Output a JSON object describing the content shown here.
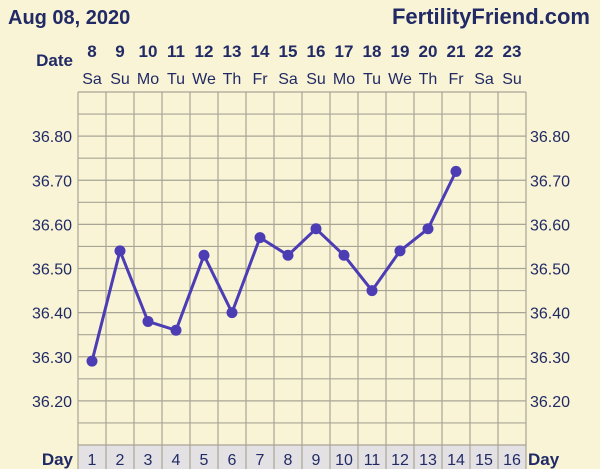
{
  "header": {
    "date_title": "Aug 08, 2020",
    "site": "FertilityFriend.com"
  },
  "chart_data": {
    "type": "line",
    "date_row_label": "Date",
    "day_row_label": "Day",
    "dates": [
      "8",
      "9",
      "10",
      "11",
      "12",
      "13",
      "14",
      "15",
      "16",
      "17",
      "18",
      "19",
      "20",
      "21",
      "22",
      "23"
    ],
    "weekdays": [
      "Sa",
      "Su",
      "Mo",
      "Tu",
      "We",
      "Th",
      "Fr",
      "Sa",
      "Su",
      "Mo",
      "Tu",
      "We",
      "Th",
      "Fr",
      "Sa",
      "Su"
    ],
    "days": [
      "1",
      "2",
      "3",
      "4",
      "5",
      "6",
      "7",
      "8",
      "9",
      "10",
      "11",
      "12",
      "13",
      "14",
      "15",
      "16"
    ],
    "yticks": [
      "36.80",
      "36.70",
      "36.60",
      "36.50",
      "36.40",
      "36.30",
      "36.20"
    ],
    "ylim": [
      36.1,
      36.9
    ],
    "series": [
      {
        "x": [
          1,
          2,
          3,
          4,
          5,
          6,
          7,
          8,
          9,
          10,
          11,
          12,
          13,
          14
        ],
        "values": [
          36.29,
          36.54,
          36.38,
          36.36,
          36.53,
          36.4,
          36.57,
          36.53,
          36.59,
          36.53,
          36.45,
          36.54,
          36.59,
          36.72
        ]
      }
    ],
    "grid": true,
    "colors": {
      "background": "#f8f4d5",
      "line": "#4c3db5",
      "grid": "#a8a596",
      "text": "#222a66",
      "day_row": "#e3e1e3"
    }
  }
}
